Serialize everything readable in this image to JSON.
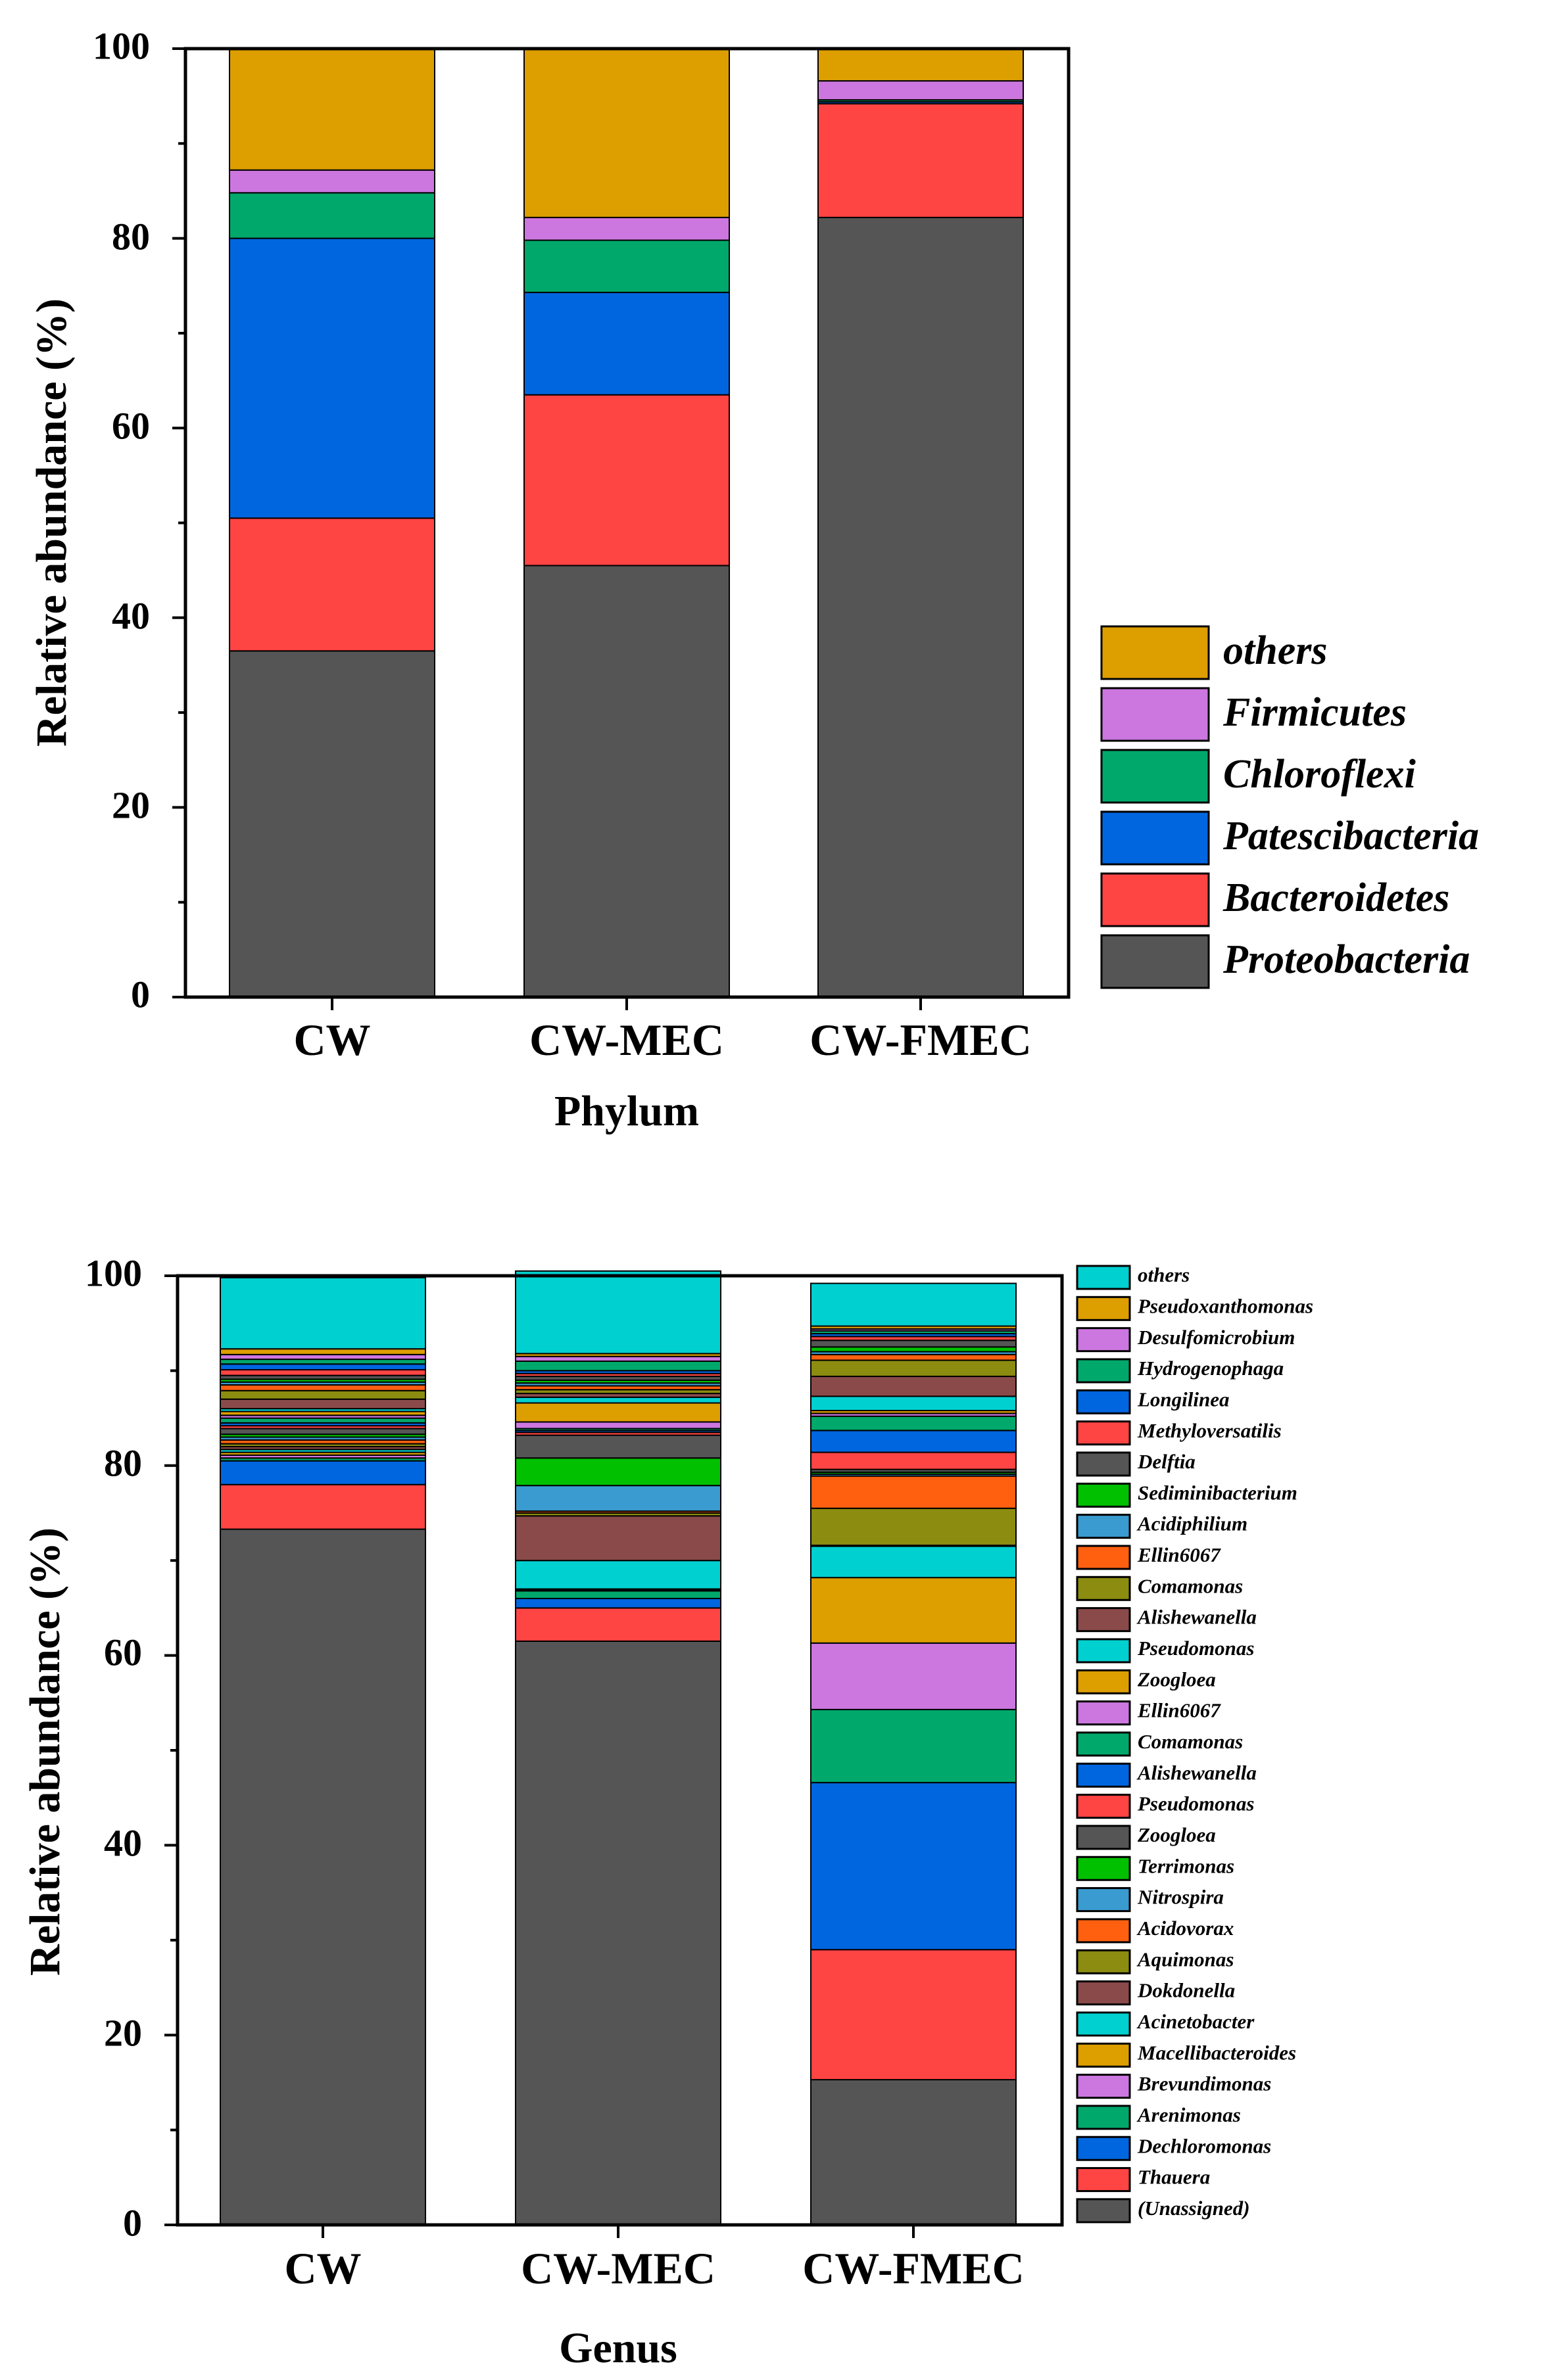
{
  "colors": [
    "#555555",
    "#ff4444",
    "#0066e0",
    "#00a86b",
    "#cc77e0",
    "#dd9e00",
    "#00d0d0",
    "#8b4a4a",
    "#8c8c10",
    "#ff6010",
    "#3a9bd0",
    "#00c000"
  ],
  "chart_data": [
    {
      "type": "stacked-bar",
      "title": "",
      "xlabel": "Phylum",
      "ylabel": "Relative abundance (%)",
      "ylim": [
        0,
        100
      ],
      "yticks": [
        "0",
        "20",
        "40",
        "60",
        "80",
        "100"
      ],
      "categories": [
        "CW",
        "CW-MEC",
        "CW-FMEC"
      ],
      "legend_position": "right",
      "series": [
        {
          "name": "Proteobacteria",
          "color_index": 0,
          "values": [
            36.5,
            45.5,
            82.2
          ]
        },
        {
          "name": "Bacteroidetes",
          "color_index": 1,
          "values": [
            14.0,
            18.0,
            12.0
          ]
        },
        {
          "name": "Patescibacteria",
          "color_index": 2,
          "values": [
            29.5,
            10.8,
            0.2
          ]
        },
        {
          "name": "Chloroflexi",
          "color_index": 3,
          "values": [
            4.8,
            5.5,
            0.2
          ]
        },
        {
          "name": "Firmicutes",
          "color_index": 4,
          "values": [
            2.4,
            2.4,
            2.0
          ]
        },
        {
          "name": "others",
          "color_index": 5,
          "values": [
            12.8,
            17.8,
            3.4
          ]
        }
      ]
    },
    {
      "type": "stacked-bar",
      "title": "",
      "xlabel": "Genus",
      "ylabel": "Relative abundance (%)",
      "ylim": [
        0,
        100
      ],
      "yticks": [
        "0",
        "20",
        "40",
        "60",
        "80",
        "100"
      ],
      "categories": [
        "CW",
        "CW-MEC",
        "CW-FMEC"
      ],
      "legend_position": "right",
      "series": [
        {
          "name": "(Unassigned)",
          "color_index": 0,
          "values": [
            73.3,
            61.5,
            15.3
          ]
        },
        {
          "name": "Thauera",
          "color_index": 1,
          "values": [
            4.7,
            3.5,
            13.7
          ]
        },
        {
          "name": "Dechloromonas",
          "color_index": 2,
          "values": [
            2.5,
            1.0,
            17.6
          ]
        },
        {
          "name": "Arenimonas",
          "color_index": 3,
          "values": [
            0.3,
            0.8,
            7.7
          ]
        },
        {
          "name": "Brevundimonas",
          "color_index": 4,
          "values": [
            0.3,
            0.1,
            7.0
          ]
        },
        {
          "name": "Macellibacteroides",
          "color_index": 5,
          "values": [
            0.3,
            0.1,
            6.9
          ]
        },
        {
          "name": "Acinetobacter",
          "color_index": 6,
          "values": [
            0.3,
            3.0,
            3.3
          ]
        },
        {
          "name": "Dokdonella",
          "color_index": 7,
          "values": [
            0.3,
            4.7,
            0.1
          ]
        },
        {
          "name": "Aquimonas",
          "color_index": 8,
          "values": [
            0.3,
            0.3,
            3.9
          ]
        },
        {
          "name": "Acidovorax",
          "color_index": 9,
          "values": [
            0.4,
            0.2,
            3.4
          ]
        },
        {
          "name": "Nitrospira",
          "color_index": 10,
          "values": [
            0.3,
            2.7,
            0.2
          ]
        },
        {
          "name": "Terrimonas",
          "color_index": 11,
          "values": [
            0.3,
            2.9,
            0.2
          ]
        },
        {
          "name": "Zoogloea",
          "color_index": 0,
          "values": [
            0.6,
            2.4,
            0.3
          ]
        },
        {
          "name": "Pseudomonas",
          "color_index": 1,
          "values": [
            0.3,
            0.3,
            1.8
          ]
        },
        {
          "name": "Alishewanella",
          "color_index": 2,
          "values": [
            0.3,
            0.2,
            2.3
          ]
        },
        {
          "name": "Comamonas",
          "color_index": 3,
          "values": [
            0.5,
            0.2,
            1.5
          ]
        },
        {
          "name": "Ellin6067",
          "color_index": 4,
          "values": [
            0.3,
            0.7,
            0.3
          ]
        },
        {
          "name": "Zoogloea",
          "color_index": 5,
          "values": [
            0.4,
            2.0,
            0.3
          ]
        },
        {
          "name": "Pseudomonas",
          "color_index": 6,
          "values": [
            0.3,
            0.6,
            1.5
          ]
        },
        {
          "name": "Alishewanella",
          "color_index": 7,
          "values": [
            1.0,
            0.4,
            2.1
          ]
        },
        {
          "name": "Comamonas",
          "color_index": 8,
          "values": [
            0.9,
            0.4,
            1.7
          ]
        },
        {
          "name": "Ellin6067",
          "color_index": 9,
          "values": [
            0.6,
            0.4,
            0.6
          ]
        },
        {
          "name": "Acidiphilium",
          "color_index": 10,
          "values": [
            0.3,
            0.3,
            0.3
          ]
        },
        {
          "name": "Sediminibacterium",
          "color_index": 11,
          "values": [
            0.3,
            0.3,
            0.5
          ]
        },
        {
          "name": "Delftia",
          "color_index": 0,
          "values": [
            0.4,
            0.4,
            0.7
          ]
        },
        {
          "name": "Methyloversatilis",
          "color_index": 1,
          "values": [
            0.6,
            0.3,
            0.4
          ]
        },
        {
          "name": "Longilinea",
          "color_index": 2,
          "values": [
            0.6,
            0.3,
            0.3
          ]
        },
        {
          "name": "Hydrogenophaga",
          "color_index": 3,
          "values": [
            0.5,
            1.0,
            0.3
          ]
        },
        {
          "name": "Desulfomicrobium",
          "color_index": 4,
          "values": [
            0.5,
            0.5,
            0.2
          ]
        },
        {
          "name": "Pseudoxanthomonas",
          "color_index": 5,
          "values": [
            0.6,
            0.3,
            0.3
          ]
        },
        {
          "name": "others",
          "color_index": 6,
          "values": [
            7.5,
            8.7,
            4.5
          ]
        }
      ]
    }
  ]
}
